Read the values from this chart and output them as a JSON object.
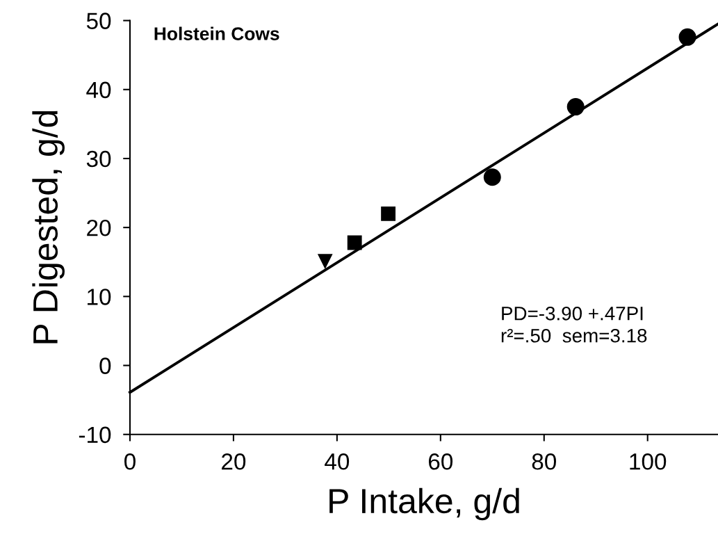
{
  "chart_data": {
    "type": "scatter",
    "xlabel": "P Intake, g/d",
    "ylabel": "P Digested, g/d",
    "xlim": [
      0,
      113.6
    ],
    "ylim": [
      -10,
      50
    ],
    "xticks": [
      0,
      20,
      40,
      60,
      80,
      100
    ],
    "yticks": [
      -10,
      0,
      10,
      20,
      30,
      40,
      50
    ],
    "grid": false,
    "legend": false,
    "series": [
      {
        "marker": "triangle",
        "color": "#000000",
        "x": [
          37.7
        ],
        "values": [
          15.1
        ]
      },
      {
        "marker": "square",
        "color": "#000000",
        "x": [
          43.4,
          49.9
        ],
        "values": [
          17.8,
          22.0
        ]
      },
      {
        "marker": "circle",
        "color": "#000000",
        "x": [
          70.0,
          86.1,
          107.7
        ],
        "values": [
          27.3,
          37.5,
          47.6
        ]
      },
      {
        "type": "line",
        "marker": "none",
        "line_style": "solid",
        "color": "#000000",
        "x": [
          0,
          113.6
        ],
        "values": [
          -3.9,
          49.5
        ]
      }
    ],
    "annotations": [
      "Holstein Cows",
      "PD=-3.90 +.47PI\nr²=.50  sem=3.18"
    ]
  }
}
